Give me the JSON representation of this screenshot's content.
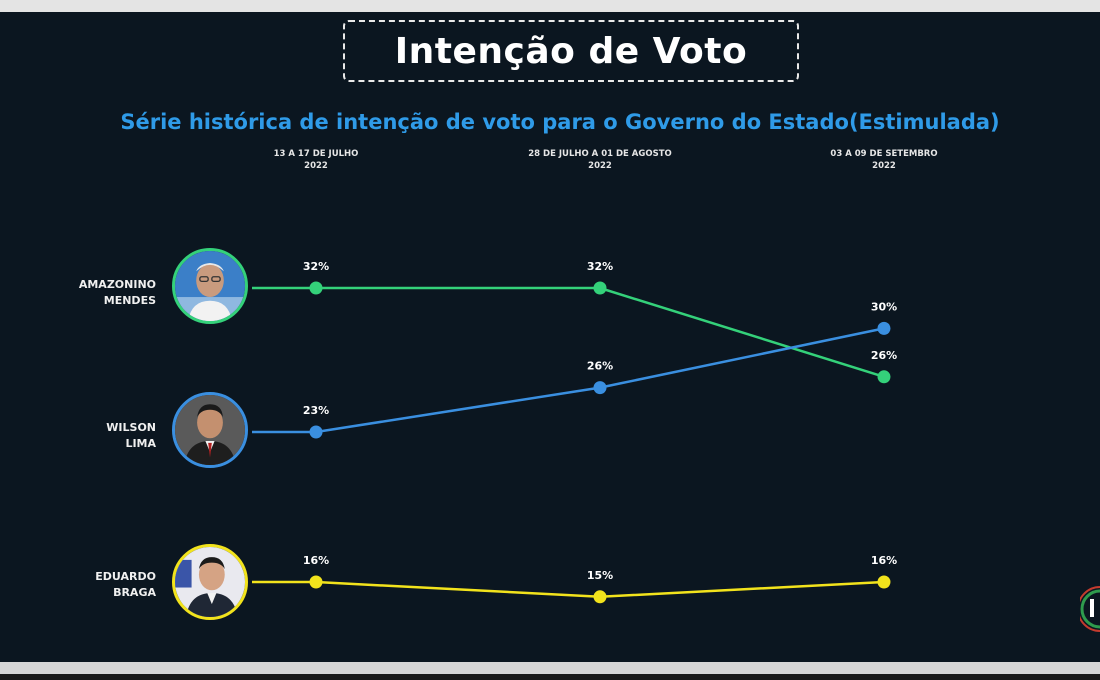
{
  "header": {
    "title": "Intenção de Voto",
    "subtitle": "Série histórica de intenção de voto para o Governo do Estado(Estimulada)"
  },
  "periods": [
    {
      "line1": "13 A 17  DE JULHO",
      "line2": "2022"
    },
    {
      "line1": "28 DE JULHO A 01 DE AGOSTO",
      "line2": "2022"
    },
    {
      "line1": "03 A 09 DE SETEMBRO",
      "line2": "2022"
    }
  ],
  "candidates": [
    {
      "line1": "AMAZONINO",
      "line2": "MENDES",
      "color": "#34d17a",
      "avatar_icon": "portrait-amazonino-icon"
    },
    {
      "line1": "WILSON",
      "line2": "LIMA",
      "color": "#3a8fe0",
      "avatar_icon": "portrait-wilson-icon"
    },
    {
      "line1": "EDUARDO",
      "line2": "BRAGA",
      "color": "#f2e31c",
      "avatar_icon": "portrait-eduardo-icon"
    }
  ],
  "chart_data": {
    "type": "line",
    "title": "Série histórica de intenção de voto para o Governo do Estado(Estimulada)",
    "x": [
      "13 A 17  DE JULHO 2022",
      "28 DE JULHO A 01 DE AGOSTO 2022",
      "03 A 09 DE SETEMBRO 2022"
    ],
    "series": [
      {
        "name": "AMAZONINO MENDES",
        "values": [
          32,
          32,
          26
        ],
        "labels": [
          "32%",
          "32%",
          "26%"
        ],
        "color": "#34d17a"
      },
      {
        "name": "WILSON LIMA",
        "values": [
          23,
          26,
          30
        ],
        "labels": [
          "23%",
          "26%",
          "30%"
        ],
        "color": "#3a8fe0"
      },
      {
        "name": "EDUARDO BRAGA",
        "values": [
          16,
          15,
          16
        ],
        "labels": [
          "16%",
          "15%",
          "16%"
        ],
        "color": "#f2e31c"
      }
    ],
    "grid": false,
    "legend": "left"
  }
}
